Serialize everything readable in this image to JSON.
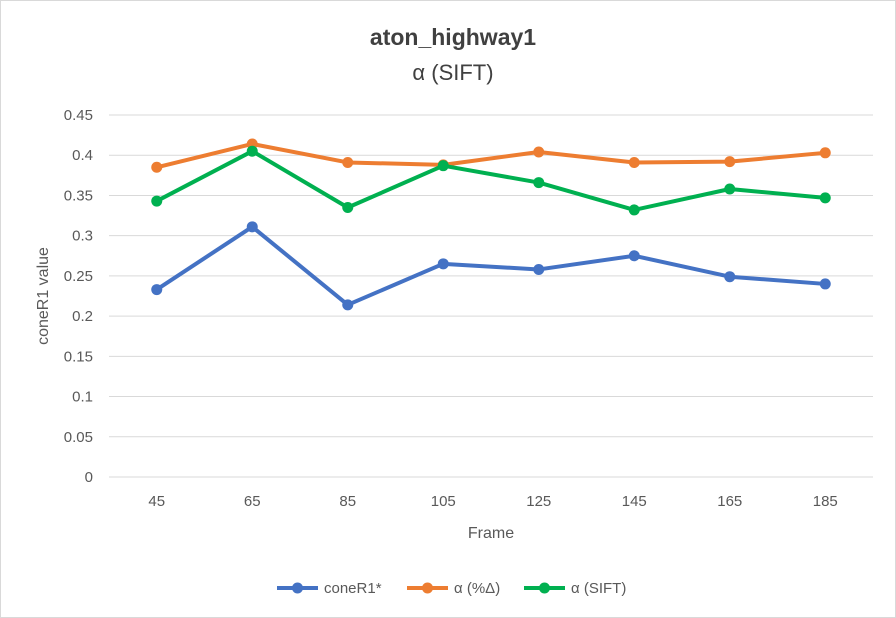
{
  "chart_data": {
    "type": "line",
    "title": "aton_highway1",
    "subtitle": "α (SIFT)",
    "xlabel": "Frame",
    "ylabel": "coneR1 value",
    "categories": [
      "45",
      "65",
      "85",
      "105",
      "125",
      "145",
      "165",
      "185"
    ],
    "ylim": [
      0,
      0.45
    ],
    "yticks": [
      "0",
      "0.05",
      "0.1",
      "0.15",
      "0.2",
      "0.25",
      "0.3",
      "0.35",
      "0.4",
      "0.45"
    ],
    "grid": true,
    "legend": "bottom",
    "series": [
      {
        "name": "coneR1*",
        "color": "#4472c4",
        "values": [
          0.233,
          0.311,
          0.214,
          0.265,
          0.258,
          0.275,
          0.249,
          0.24
        ]
      },
      {
        "name": "α (%Δ)",
        "color": "#ed7d31",
        "values": [
          0.385,
          0.414,
          0.391,
          0.388,
          0.404,
          0.391,
          0.392,
          0.403
        ]
      },
      {
        "name": "α (SIFT)",
        "color": "#00b050",
        "values": [
          0.343,
          0.405,
          0.335,
          0.387,
          0.366,
          0.332,
          0.358,
          0.347
        ]
      }
    ]
  }
}
